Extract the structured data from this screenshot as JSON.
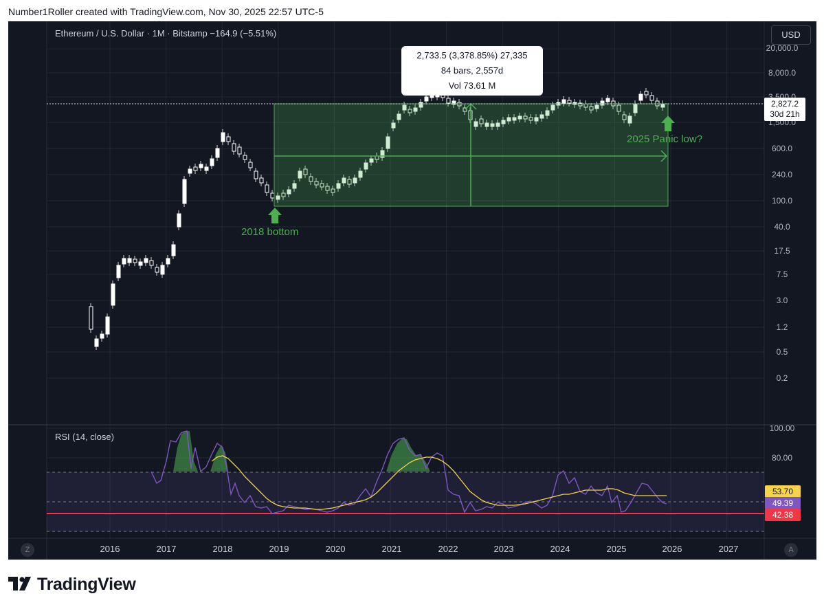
{
  "header": {
    "caption": "Number1Roller created with TradingView.com, Nov 30, 2025 22:57 UTC-5"
  },
  "chart": {
    "legend_symbol": "Ethereum / U.S. Dollar · 1M · Bitstamp",
    "legend_change": "−164.9 (−5.51%)",
    "currency_button": "USD",
    "price_axis": [
      "20,000.0",
      "8,000.0",
      "3,500.0",
      "1,500.0",
      "600.0",
      "240.0",
      "100.0",
      "40.0",
      "17.5",
      "7.5",
      "3.0",
      "1.2",
      "0.5",
      "0.2"
    ],
    "rsi_axis": [
      "100.00",
      "80.00"
    ],
    "time_axis": [
      "2016",
      "2017",
      "2018",
      "2019",
      "2020",
      "2021",
      "2022",
      "2023",
      "2024",
      "2025",
      "2026",
      "2027"
    ],
    "last_price": "2,827.2",
    "countdown": "30d 21h",
    "measure_tooltip": {
      "line1": "2,733.5 (3,378.85%) 27,335",
      "line2": "84 bars, 2,557d",
      "line3": "Vol 73.61 M"
    },
    "annotations": {
      "bottom_2018": "2018 bottom",
      "panic_low_2025": "2025 Panic low?"
    },
    "rsi_legend": "RSI (14, close)",
    "rsi_values": {
      "ma": "53.70",
      "rsi": "49.39",
      "level": "42.38"
    },
    "bottom_left_button": "Z",
    "bottom_right_button": "A",
    "colors": {
      "background": "#131722",
      "grid": "#2a2e39",
      "up": "#ffffff",
      "down": "#ffffff",
      "measure_fill": "#4caf50",
      "rsi_line": "#7e57c2",
      "rsi_ma": "#f7d34a",
      "level_line": "#f23645"
    }
  },
  "footer": {
    "brand": "TradingView"
  }
}
